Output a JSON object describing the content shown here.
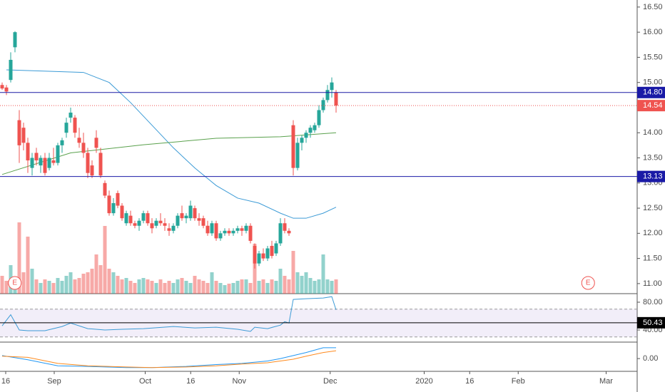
{
  "chart_data": {
    "type": "candlestick",
    "colors": {
      "up": "#26a69a",
      "down": "#ef5350",
      "ma50": "#3c9bd6",
      "ma200": "#5aa14d",
      "rsi": "#3c9bd6",
      "macd": "#2196f3",
      "signal": "#ff8a1e"
    },
    "ylim": [
      10.8,
      16.64
    ],
    "yticks": [
      {
        "value": 16.5,
        "label": "16.50"
      },
      {
        "value": 16,
        "label": "16.00"
      },
      {
        "value": 15.5,
        "label": "15.50"
      },
      {
        "value": 15,
        "label": "15.00"
      },
      {
        "value": 14,
        "label": "14.00"
      },
      {
        "value": 13.5,
        "label": "13.50"
      },
      {
        "value": 13,
        "label": "13.00"
      },
      {
        "value": 12.5,
        "label": "12.50"
      },
      {
        "value": 12,
        "label": "12.00"
      },
      {
        "value": 11.5,
        "label": "11.50"
      },
      {
        "value": 11,
        "label": "11.00"
      }
    ],
    "xticks": [
      {
        "value": 0,
        "label": "16"
      },
      {
        "value": 16,
        "label": "Sep"
      },
      {
        "value": 46,
        "label": "Oct"
      },
      {
        "value": 61,
        "label": "16"
      },
      {
        "value": 77,
        "label": "Nov"
      },
      {
        "value": 107,
        "label": "Dec"
      },
      {
        "value": 138,
        "label": "2020"
      },
      {
        "value": 153,
        "label": "16"
      },
      {
        "value": 169,
        "label": "Feb"
      },
      {
        "value": 198,
        "label": "Mar"
      }
    ],
    "events": [
      {
        "x": 3,
        "label": "E"
      },
      {
        "x": 193,
        "label": "E"
      }
    ],
    "levels": [
      {
        "value": 14.8,
        "label": "14.80",
        "color": "#1a1aa6",
        "style": "solid"
      },
      {
        "value": 14.54,
        "label": "14.54",
        "color": "#ef5350",
        "style": "dotted"
      },
      {
        "value": 13.13,
        "label": "13.13",
        "color": "#1a1aa6",
        "style": "solid"
      }
    ],
    "candles": [
      [
        14.95,
        15.0,
        14.85,
        14.88
      ],
      [
        14.9,
        14.95,
        14.75,
        14.82
      ],
      [
        15.05,
        15.6,
        15.0,
        15.45
      ],
      [
        15.7,
        16.02,
        15.6,
        16.0
      ],
      [
        14.25,
        14.45,
        13.4,
        13.75
      ],
      [
        14.1,
        14.2,
        13.65,
        13.8
      ],
      [
        13.8,
        13.9,
        13.2,
        13.45
      ],
      [
        13.3,
        13.6,
        13.15,
        13.5
      ],
      [
        13.6,
        13.7,
        13.35,
        13.45
      ],
      [
        13.35,
        13.55,
        13.2,
        13.5
      ],
      [
        13.5,
        13.6,
        13.15,
        13.2
      ],
      [
        13.3,
        13.6,
        13.25,
        13.5
      ],
      [
        13.45,
        13.7,
        13.35,
        13.4
      ],
      [
        13.4,
        13.8,
        13.35,
        13.75
      ],
      [
        13.75,
        13.9,
        13.6,
        13.85
      ],
      [
        14.0,
        14.3,
        13.9,
        14.2
      ],
      [
        14.3,
        14.5,
        14.2,
        14.4
      ],
      [
        14.3,
        14.35,
        13.9,
        14.0
      ],
      [
        13.9,
        14.1,
        13.7,
        13.8
      ],
      [
        13.8,
        14.0,
        13.5,
        13.6
      ],
      [
        13.6,
        13.7,
        13.1,
        13.2
      ],
      [
        13.35,
        13.45,
        13.1,
        13.15
      ],
      [
        13.9,
        14.05,
        13.6,
        13.7
      ],
      [
        13.6,
        13.7,
        13.1,
        13.15
      ],
      [
        13.0,
        13.05,
        12.7,
        12.75
      ],
      [
        12.75,
        12.85,
        12.35,
        12.4
      ],
      [
        12.4,
        12.7,
        12.35,
        12.6
      ],
      [
        12.8,
        12.85,
        12.5,
        12.55
      ],
      [
        12.55,
        12.6,
        12.25,
        12.3
      ],
      [
        12.2,
        12.45,
        12.15,
        12.4
      ],
      [
        12.35,
        12.45,
        12.15,
        12.2
      ],
      [
        12.2,
        12.25,
        12.1,
        12.15
      ],
      [
        12.15,
        12.3,
        12.05,
        12.25
      ],
      [
        12.25,
        12.45,
        12.2,
        12.4
      ],
      [
        12.4,
        12.45,
        12.15,
        12.2
      ],
      [
        12.2,
        12.3,
        12.0,
        12.1
      ],
      [
        12.15,
        12.3,
        12.1,
        12.25
      ],
      [
        12.25,
        12.4,
        12.15,
        12.2
      ],
      [
        12.2,
        12.3,
        12.05,
        12.15
      ],
      [
        12.1,
        12.2,
        11.95,
        12.05
      ],
      [
        12.05,
        12.2,
        12.0,
        12.15
      ],
      [
        12.15,
        12.4,
        12.1,
        12.35
      ],
      [
        12.4,
        12.55,
        12.25,
        12.3
      ],
      [
        12.3,
        12.4,
        12.2,
        12.35
      ],
      [
        12.3,
        12.65,
        12.25,
        12.55
      ],
      [
        12.5,
        12.55,
        12.25,
        12.3
      ],
      [
        12.3,
        12.4,
        12.15,
        12.25
      ],
      [
        12.3,
        12.35,
        12.1,
        12.15
      ],
      [
        12.15,
        12.25,
        11.95,
        12.0
      ],
      [
        12.0,
        12.25,
        11.95,
        12.2
      ],
      [
        12.2,
        12.25,
        11.85,
        11.9
      ],
      [
        11.9,
        12.05,
        11.85,
        12.0
      ],
      [
        12.0,
        12.1,
        11.95,
        12.05
      ],
      [
        12.05,
        12.1,
        11.95,
        12.0
      ],
      [
        12.0,
        12.1,
        11.95,
        12.05
      ],
      [
        12.05,
        12.15,
        12.0,
        12.1
      ],
      [
        12.1,
        12.15,
        11.95,
        12.05
      ],
      [
        12.05,
        12.2,
        12.0,
        12.15
      ],
      [
        12.15,
        12.2,
        11.8,
        11.85
      ],
      [
        11.75,
        11.8,
        11.3,
        11.4
      ],
      [
        11.4,
        11.65,
        11.35,
        11.6
      ],
      [
        11.6,
        11.7,
        11.45,
        11.5
      ],
      [
        11.5,
        11.75,
        11.45,
        11.7
      ],
      [
        11.75,
        11.85,
        11.5,
        11.55
      ],
      [
        11.6,
        11.85,
        11.55,
        11.8
      ],
      [
        11.8,
        12.3,
        11.75,
        12.2
      ],
      [
        12.2,
        12.3,
        12.0,
        12.05
      ],
      [
        12.05,
        12.1,
        11.95,
        12.0
      ],
      [
        14.15,
        14.25,
        13.15,
        13.3
      ],
      [
        13.3,
        13.9,
        13.25,
        13.8
      ],
      [
        13.8,
        13.95,
        13.65,
        13.9
      ],
      [
        13.9,
        14.05,
        13.8,
        14.0
      ],
      [
        14.0,
        14.15,
        13.9,
        14.1
      ],
      [
        14.05,
        14.2,
        14.0,
        14.15
      ],
      [
        14.15,
        14.55,
        14.1,
        14.45
      ],
      [
        14.45,
        14.7,
        14.4,
        14.65
      ],
      [
        14.65,
        14.95,
        14.6,
        14.85
      ],
      [
        14.85,
        15.1,
        14.7,
        15.0
      ],
      [
        14.8,
        14.85,
        14.4,
        14.54
      ]
    ],
    "volume": [
      1.25,
      0.9,
      2.0,
      1.0,
      5.0,
      1.5,
      4.0,
      1.75,
      1.0,
      0.75,
      1.0,
      0.9,
      0.75,
      1.1,
      0.9,
      1.25,
      1.5,
      1.0,
      1.1,
      1.4,
      1.5,
      1.75,
      2.75,
      2.0,
      4.75,
      1.75,
      1.5,
      1.25,
      1.0,
      1.1,
      0.9,
      0.75,
      1.0,
      1.1,
      1.0,
      0.9,
      0.75,
      1.0,
      0.75,
      0.9,
      0.75,
      1.0,
      1.1,
      0.9,
      0.75,
      1.25,
      1.0,
      0.9,
      0.75,
      1.5,
      0.9,
      0.75,
      0.6,
      0.7,
      0.75,
      0.9,
      1.0,
      1.0,
      0.75,
      3.5,
      0.9,
      1.0,
      0.75,
      1.0,
      0.9,
      1.75,
      1.25,
      1.0,
      3.0,
      1.5,
      1.25,
      1.5,
      1.1,
      0.9,
      1.0,
      2.75,
      1.0,
      0.9,
      1.0
    ],
    "ma50": {
      "x": [
        1,
        19,
        25,
        30,
        35,
        40,
        45,
        50,
        55,
        60,
        65,
        68,
        71,
        75,
        78
      ],
      "values": [
        15.25,
        15.2,
        15.0,
        14.6,
        14.15,
        13.7,
        13.3,
        12.95,
        12.7,
        12.6,
        12.4,
        12.3,
        12.3,
        12.4,
        12.52
      ]
    },
    "ma200": {
      "x": [
        0,
        16,
        33,
        50,
        65,
        78
      ],
      "values": [
        13.17,
        13.6,
        13.76,
        13.89,
        13.92,
        14.0
      ]
    },
    "rsi": {
      "ylim": [
        22.6,
        92.3
      ],
      "yticks": [
        {
          "value": 80,
          "label": "80.00"
        },
        {
          "value": 40,
          "label": "40.00"
        }
      ],
      "bands": [
        70,
        30
      ],
      "level": {
        "value": 50.43,
        "label": "50.43"
      },
      "x": [
        0,
        2,
        4,
        6,
        10,
        14,
        16,
        20,
        24,
        28,
        33,
        40,
        45,
        50,
        55,
        58,
        59,
        62,
        65,
        66,
        67,
        68,
        71,
        75,
        77,
        78
      ],
      "values": [
        46,
        62,
        40,
        39,
        39,
        45,
        50,
        42,
        40,
        41,
        42,
        45,
        43,
        44,
        41,
        38,
        44,
        42,
        47,
        52,
        50,
        84,
        85,
        86,
        88,
        69
      ]
    },
    "macd": {
      "ylim": [
        -0.2,
        0.25
      ],
      "yticks": [
        {
          "value": 0,
          "label": "0.00"
        }
      ],
      "x": [
        0,
        6,
        13,
        20,
        29,
        35,
        43,
        50,
        56,
        62,
        65,
        68,
        71,
        75,
        78
      ],
      "macd": [
        0.05,
        -0.02,
        -0.12,
        -0.13,
        -0.15,
        -0.15,
        -0.13,
        -0.1,
        -0.08,
        -0.04,
        0.0,
        0.05,
        0.1,
        0.18,
        0.18
      ],
      "signal": [
        0.04,
        0.02,
        -0.08,
        -0.12,
        -0.14,
        -0.15,
        -0.14,
        -0.12,
        -0.09,
        -0.07,
        -0.04,
        -0.01,
        0.04,
        0.1,
        0.13
      ]
    }
  }
}
